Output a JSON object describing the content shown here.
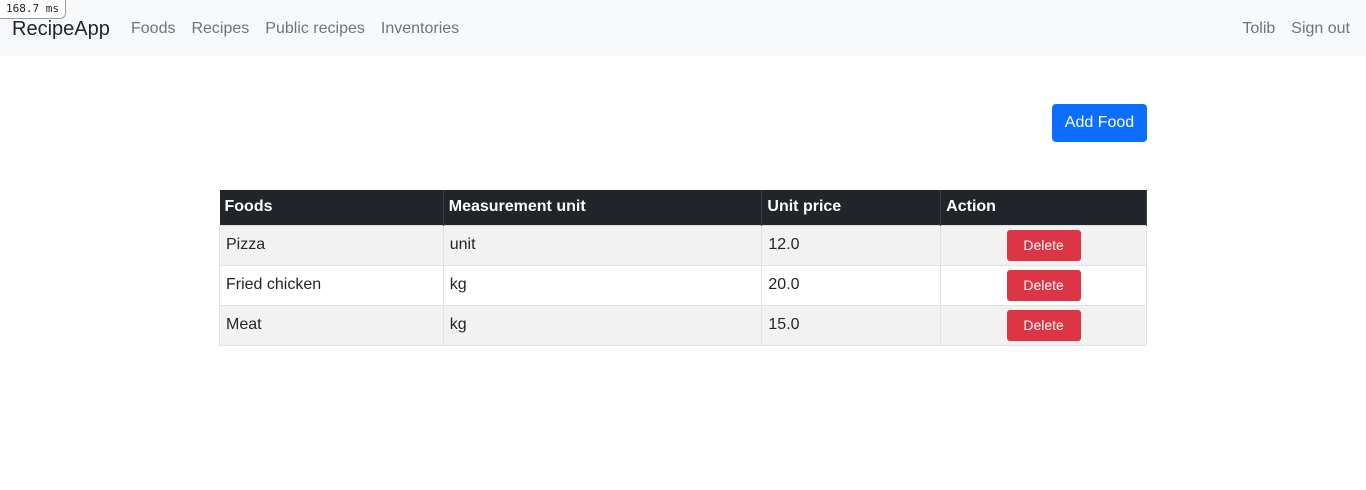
{
  "timing": "168.7 ms",
  "navbar": {
    "brand": "RecipeApp",
    "links": [
      "Foods",
      "Recipes",
      "Public recipes",
      "Inventories"
    ],
    "user": "Tolib",
    "sign_out": "Sign out"
  },
  "add_button": "Add Food",
  "table": {
    "headers": [
      "Foods",
      "Measurement unit",
      "Unit price",
      "Action"
    ],
    "rows": [
      {
        "food": "Pizza",
        "unit": "unit",
        "price": "12.0",
        "action": "Delete"
      },
      {
        "food": "Fried chicken",
        "unit": "kg",
        "price": "20.0",
        "action": "Delete"
      },
      {
        "food": "Meat",
        "unit": "kg",
        "price": "15.0",
        "action": "Delete"
      }
    ]
  },
  "colors": {
    "navbar_bg": "#f8f9fa",
    "primary": "#0d6efd",
    "danger": "#dc3545",
    "table_header": "#212529"
  }
}
